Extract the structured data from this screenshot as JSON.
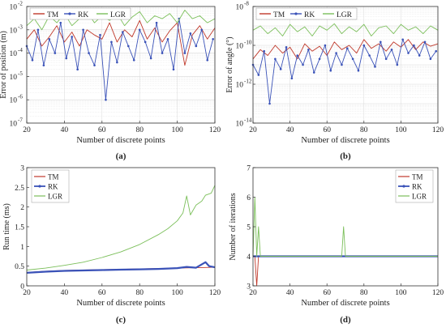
{
  "colors": {
    "TM": "#c0392b",
    "RK": "#3a52b8",
    "LGR": "#7bbf5a",
    "axis": "#333333",
    "grid": "#d9d9d9"
  },
  "chart_data": [
    {
      "panel_label": "(a)",
      "type": "line",
      "xlabel": "Number of discrete points",
      "ylabel": "Error of position (m)",
      "yscale": "log",
      "xlim": [
        20,
        120
      ],
      "ylim": [
        1e-07,
        0.01
      ],
      "xticks": [
        20,
        40,
        60,
        80,
        100,
        120
      ],
      "yticks": [
        1e-07,
        1e-06,
        1e-05,
        0.0001,
        0.001,
        0.01
      ],
      "ytick_labels": [
        [
          "10",
          "-7"
        ],
        [
          "10",
          "-6"
        ],
        [
          "10",
          "-5"
        ],
        [
          "10",
          "-4"
        ],
        [
          "10",
          "-3"
        ],
        [
          "10",
          "-2"
        ]
      ],
      "grid": true,
      "legend_position": "top, horizontal",
      "series": [
        {
          "name": "TM",
          "x": [
            20,
            24,
            28,
            32,
            36,
            40,
            44,
            48,
            52,
            56,
            60,
            64,
            68,
            72,
            76,
            80,
            84,
            88,
            92,
            96,
            100,
            104,
            108,
            112,
            116,
            120
          ],
          "y": [
            0.0004,
            0.001,
            0.0002,
            0.0005,
            0.0015,
            0.0003,
            0.0008,
            0.0002,
            0.001,
            0.0006,
            0.0004,
            0.002,
            0.0003,
            0.001,
            0.0005,
            0.0025,
            0.0004,
            0.0012,
            0.0003,
            0.0009,
            0.002,
            3e-05,
            0.0006,
            0.0015,
            0.0004,
            0.0012
          ]
        },
        {
          "name": "RK",
          "x": [
            20,
            23,
            26,
            29,
            32,
            35,
            38,
            41,
            44,
            47,
            50,
            53,
            56,
            59,
            62,
            65,
            68,
            71,
            74,
            77,
            80,
            83,
            86,
            89,
            92,
            95,
            98,
            101,
            104,
            107,
            110,
            113,
            116,
            119
          ],
          "y": [
            0.0002,
            5e-05,
            0.001,
            3e-05,
            0.0004,
            0.0001,
            0.002,
            6e-05,
            0.0005,
            2e-05,
            0.001,
            0.0001,
            3e-05,
            0.0006,
            1e-06,
            0.0003,
            4e-05,
            0.0008,
            0.0002,
            5e-05,
            0.001,
            0.0003,
            6e-05,
            0.002,
            0.0001,
            0.0004,
            2e-05,
            0.003,
            0.0001,
            0.0007,
            0.0002,
            0.001,
            5e-05,
            0.0004
          ]
        },
        {
          "name": "LGR",
          "x": [
            20,
            24,
            28,
            32,
            36,
            40,
            44,
            48,
            52,
            56,
            60,
            64,
            68,
            72,
            76,
            80,
            84,
            88,
            92,
            96,
            100,
            104,
            108,
            112,
            116,
            120
          ],
          "y": [
            0.0015,
            0.003,
            0.001,
            0.004,
            0.002,
            0.005,
            0.0015,
            0.003,
            0.006,
            0.002,
            0.004,
            0.0025,
            0.005,
            0.0015,
            0.0035,
            0.006,
            0.002,
            0.004,
            0.003,
            0.005,
            0.002,
            0.007,
            0.003,
            0.004,
            0.002,
            0.003
          ]
        }
      ]
    },
    {
      "panel_label": "(b)",
      "type": "line",
      "xlabel": "Number of discrete points",
      "ylabel": "Error of angle (°)",
      "yscale": "log",
      "xlim": [
        20,
        120
      ],
      "ylim": [
        1e-14,
        1e-08
      ],
      "xticks": [
        20,
        40,
        60,
        80,
        100,
        120
      ],
      "yticks": [
        1e-14,
        1e-12,
        1e-10,
        1e-08
      ],
      "ytick_labels": [
        [
          "10",
          "-14"
        ],
        [
          "10",
          "-12"
        ],
        [
          "10",
          "-10"
        ],
        [
          "10",
          "-8"
        ]
      ],
      "grid": true,
      "legend_position": "top, horizontal",
      "series": [
        {
          "name": "TM",
          "x": [
            20,
            24,
            28,
            32,
            36,
            40,
            44,
            48,
            52,
            56,
            60,
            64,
            68,
            72,
            76,
            80,
            84,
            88,
            92,
            96,
            100,
            104,
            108,
            112,
            116,
            120
          ],
          "y": [
            2e-11,
            6e-11,
            3e-11,
            1e-10,
            4e-11,
            8e-11,
            2e-11,
            1.2e-10,
            5e-11,
            9e-11,
            3e-11,
            1.5e-10,
            6e-11,
            1e-10,
            4e-11,
            2e-10,
            7e-11,
            1.2e-10,
            5e-11,
            1.5e-10,
            8e-11,
            2e-10,
            6e-11,
            1.5e-10,
            9e-11,
            1.2e-10
          ]
        },
        {
          "name": "RK",
          "x": [
            20,
            23,
            26,
            29,
            32,
            35,
            38,
            41,
            44,
            47,
            50,
            53,
            56,
            59,
            62,
            65,
            68,
            71,
            74,
            77,
            80,
            83,
            86,
            89,
            92,
            95,
            98,
            101,
            104,
            107,
            110,
            113,
            116,
            119
          ],
          "y": [
            1e-11,
            3e-12,
            5e-11,
            1e-13,
            2e-11,
            6e-12,
            8e-11,
            2e-12,
            3e-11,
            1e-11,
            6e-11,
            4e-12,
            2e-11,
            1e-10,
            5e-12,
            4e-11,
            1e-11,
            7e-11,
            2e-11,
            5e-12,
            1e-10,
            3e-11,
            8e-12,
            1.5e-10,
            2e-11,
            6e-11,
            1e-11,
            2e-10,
            4e-11,
            1e-10,
            3e-11,
            1.5e-10,
            2e-11,
            5e-11
          ]
        },
        {
          "name": "LGR",
          "x": [
            20,
            24,
            28,
            32,
            36,
            40,
            44,
            48,
            52,
            56,
            60,
            64,
            68,
            72,
            76,
            80,
            84,
            88,
            92,
            96,
            100,
            104,
            108,
            112,
            116,
            120
          ],
          "y": [
            6e-10,
            1e-09,
            4e-10,
            8e-10,
            3e-10,
            1.2e-09,
            5e-10,
            9e-10,
            3e-10,
            1e-09,
            6e-10,
            1.3e-09,
            4e-10,
            9e-10,
            5e-10,
            1.2e-09,
            3e-10,
            8e-10,
            1e-09,
            4e-10,
            1.2e-09,
            6e-10,
            9e-10,
            4e-10,
            1e-09,
            6e-10
          ]
        }
      ]
    },
    {
      "panel_label": "(c)",
      "type": "line",
      "xlabel": "Number of discrete points",
      "ylabel": "Run time (ms)",
      "xlim": [
        20,
        120
      ],
      "ylim": [
        0,
        3
      ],
      "xticks": [
        20,
        40,
        60,
        80,
        100,
        120
      ],
      "yticks": [
        0,
        0.5,
        1,
        1.5,
        2,
        2.5,
        3
      ],
      "ytick_labels": [
        "0",
        "0.5",
        "1",
        "1.5",
        "2",
        "2.5",
        "3"
      ],
      "grid": false,
      "legend_position": "top-left, vertical",
      "series": [
        {
          "name": "TM",
          "x": [
            20,
            30,
            40,
            50,
            60,
            70,
            80,
            90,
            100,
            110,
            120
          ],
          "y": [
            0.34,
            0.37,
            0.39,
            0.4,
            0.41,
            0.42,
            0.43,
            0.44,
            0.45,
            0.46,
            0.47
          ]
        },
        {
          "name": "RK",
          "x": [
            20,
            30,
            40,
            50,
            60,
            70,
            80,
            90,
            100,
            105,
            110,
            115,
            117,
            120
          ],
          "y": [
            0.33,
            0.36,
            0.38,
            0.39,
            0.4,
            0.41,
            0.42,
            0.43,
            0.45,
            0.48,
            0.46,
            0.6,
            0.5,
            0.47
          ]
        },
        {
          "name": "LGR",
          "x": [
            20,
            30,
            40,
            50,
            60,
            70,
            80,
            90,
            95,
            100,
            103,
            105,
            107,
            110,
            113,
            115,
            118,
            120
          ],
          "y": [
            0.4,
            0.45,
            0.52,
            0.6,
            0.72,
            0.86,
            1.05,
            1.3,
            1.45,
            1.65,
            1.85,
            2.28,
            1.8,
            2.05,
            2.15,
            2.3,
            2.35,
            2.55
          ]
        }
      ]
    },
    {
      "panel_label": "(d)",
      "type": "line",
      "xlabel": "Number of discrete points",
      "ylabel": "Number of iterations",
      "xlim": [
        20,
        120
      ],
      "ylim": [
        3,
        7
      ],
      "xticks": [
        20,
        40,
        60,
        80,
        100,
        120
      ],
      "yticks": [
        3,
        4,
        5,
        6,
        7
      ],
      "ytick_labels": [
        "3",
        "4",
        "5",
        "6",
        "7"
      ],
      "grid": false,
      "legend_position": "top-right, vertical",
      "series": [
        {
          "name": "TM",
          "x": [
            20,
            21,
            22,
            23,
            25,
            120
          ],
          "y": [
            4,
            4,
            3,
            4,
            4,
            4
          ]
        },
        {
          "name": "RK",
          "x": [
            20,
            120
          ],
          "y": [
            4,
            4
          ]
        },
        {
          "name": "LGR",
          "x": [
            20,
            21,
            22,
            23,
            24,
            25,
            68,
            69,
            70,
            120
          ],
          "y": [
            4,
            6,
            4,
            5,
            4,
            4,
            4,
            5,
            4,
            4
          ]
        }
      ]
    }
  ]
}
